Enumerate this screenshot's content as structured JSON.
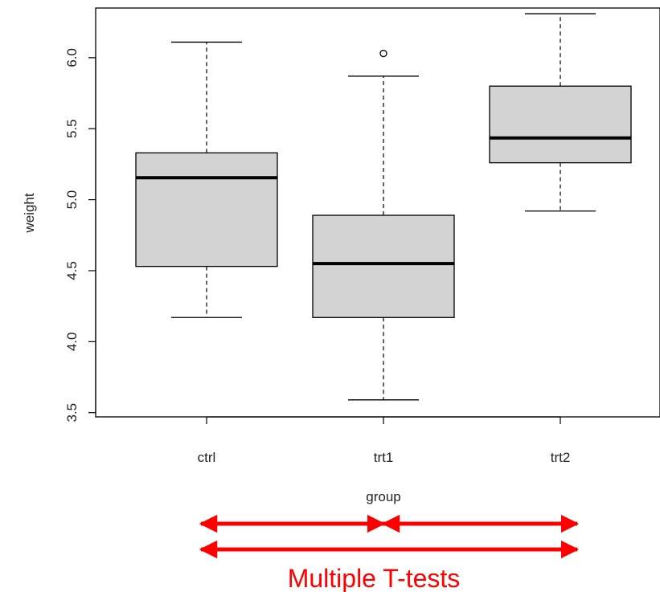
{
  "chart_data": {
    "type": "boxplot",
    "title": "",
    "xlabel": "group",
    "ylabel": "weight",
    "ylim": [
      3.47,
      6.35
    ],
    "yticks": [
      "3.5",
      "4.0",
      "4.5",
      "5.0",
      "5.5",
      "6.0"
    ],
    "grid": false,
    "categories": [
      "ctrl",
      "trt1",
      "trt2"
    ],
    "boxes": [
      {
        "whisker_low": 4.17,
        "q1": 4.53,
        "median": 5.155,
        "q3": 5.33,
        "whisker_high": 6.11,
        "outliers": []
      },
      {
        "whisker_low": 3.59,
        "q1": 4.17,
        "median": 4.55,
        "q3": 4.89,
        "whisker_high": 5.87,
        "outliers": [
          6.03
        ]
      },
      {
        "whisker_low": 4.92,
        "q1": 5.26,
        "median": 5.435,
        "q3": 5.8,
        "whisker_high": 6.31,
        "outliers": []
      }
    ],
    "box_fill": "#d3d3d3"
  },
  "annotation": {
    "text": "Multiple T-tests",
    "color": "#ff0000",
    "comparisons": [
      {
        "from": "ctrl",
        "to": "trt1"
      },
      {
        "from": "trt1",
        "to": "trt2"
      },
      {
        "from": "ctrl",
        "to": "trt2"
      }
    ]
  }
}
